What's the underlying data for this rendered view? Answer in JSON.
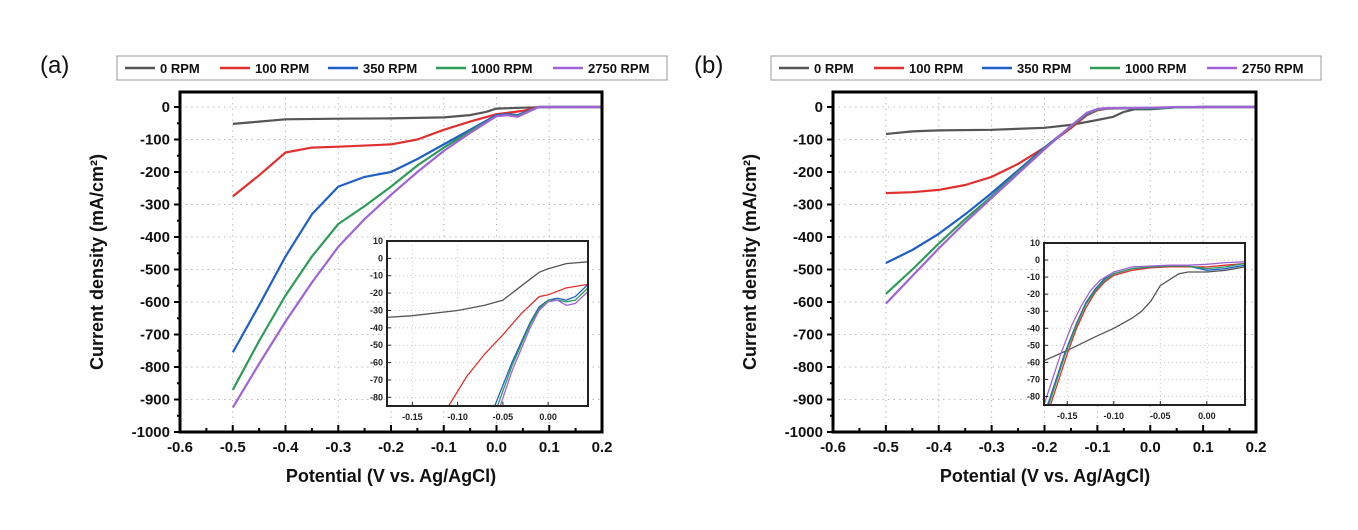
{
  "chart_data": [
    {
      "type": "line",
      "panel_label": "(a)",
      "title": "",
      "xlabel": "Potential (V vs. Ag/AgCl)",
      "ylabel": "Current density (mA/cm²)",
      "xlim": [
        -0.6,
        0.2
      ],
      "ylim": [
        -1000,
        50
      ],
      "xticks": [
        "-0.6",
        "-0.5",
        "-0.4",
        "-0.3",
        "-0.2",
        "-0.1",
        "0.0",
        "0.1",
        "0.2"
      ],
      "yticks": [
        "0",
        "-100",
        "-200",
        "-300",
        "-400",
        "-500",
        "-600",
        "-700",
        "-800",
        "-900",
        "-1000"
      ],
      "grid": true,
      "legend_position": "top",
      "series": [
        {
          "name": "0 RPM",
          "color": "#555555",
          "x": [
            -0.5,
            -0.45,
            -0.4,
            -0.3,
            -0.2,
            -0.1,
            -0.05,
            -0.02,
            0.0,
            0.05,
            0.1,
            0.2
          ],
          "y": [
            -52,
            -45,
            -38,
            -36,
            -35,
            -32,
            -25,
            -15,
            -5,
            -2,
            0,
            0
          ]
        },
        {
          "name": "100 RPM",
          "color": "#e03030",
          "x": [
            -0.5,
            -0.45,
            -0.4,
            -0.35,
            -0.3,
            -0.2,
            -0.15,
            -0.1,
            -0.05,
            0.0,
            0.05,
            0.08,
            0.1,
            0.2
          ],
          "y": [
            -275,
            -210,
            -140,
            -125,
            -122,
            -115,
            -100,
            -70,
            -45,
            -22,
            -12,
            0,
            0,
            0
          ]
        },
        {
          "name": "350 RPM",
          "color": "#1f5fc8",
          "x": [
            -0.5,
            -0.45,
            -0.4,
            -0.35,
            -0.3,
            -0.25,
            -0.2,
            -0.15,
            -0.1,
            -0.05,
            0.0,
            0.02,
            0.04,
            0.08,
            0.1,
            0.2
          ],
          "y": [
            -755,
            -610,
            -460,
            -330,
            -245,
            -215,
            -200,
            -160,
            -115,
            -70,
            -25,
            -22,
            -25,
            0,
            0,
            0
          ]
        },
        {
          "name": "1000 RPM",
          "color": "#2e9c58",
          "x": [
            -0.5,
            -0.45,
            -0.4,
            -0.35,
            -0.3,
            -0.25,
            -0.2,
            -0.15,
            -0.1,
            -0.05,
            0.0,
            0.02,
            0.04,
            0.08,
            0.1,
            0.2
          ],
          "y": [
            -870,
            -720,
            -580,
            -460,
            -360,
            -305,
            -245,
            -180,
            -125,
            -75,
            -28,
            -24,
            -28,
            0,
            0,
            0
          ]
        },
        {
          "name": "2750 RPM",
          "color": "#a063d6",
          "x": [
            -0.5,
            -0.45,
            -0.4,
            -0.35,
            -0.3,
            -0.25,
            -0.2,
            -0.15,
            -0.1,
            -0.05,
            0.0,
            0.02,
            0.04,
            0.08,
            0.1,
            0.2
          ],
          "y": [
            -925,
            -790,
            -660,
            -540,
            -430,
            -345,
            -270,
            -200,
            -135,
            -80,
            -28,
            -25,
            -30,
            0,
            0,
            0
          ]
        }
      ],
      "inset": {
        "xlim": [
          -0.178,
          0.044
        ],
        "ylim": [
          -85,
          10
        ],
        "xticks": [
          "-0.15",
          "-0.10",
          "-0.05",
          "0.00"
        ],
        "yticks": [
          "10",
          "0",
          "-10",
          "-20",
          "-30",
          "-40",
          "-50",
          "-60",
          "-70",
          "-80"
        ],
        "series": [
          {
            "name": "0 RPM",
            "color": "#555555",
            "x": [
              -0.178,
              -0.15,
              -0.1,
              -0.07,
              -0.05,
              -0.03,
              -0.01,
              0.0,
              0.02,
              0.044
            ],
            "y": [
              -34,
              -33,
              -30,
              -27,
              -24,
              -16,
              -8,
              -6,
              -3,
              -2
            ]
          },
          {
            "name": "100 RPM",
            "color": "#e03030",
            "x": [
              -0.11,
              -0.09,
              -0.07,
              -0.05,
              -0.03,
              -0.01,
              0.0,
              0.02,
              0.044
            ],
            "y": [
              -85,
              -68,
              -55,
              -44,
              -32,
              -22,
              -21,
              -17,
              -15
            ]
          },
          {
            "name": "350 RPM",
            "color": "#1f5fc8",
            "x": [
              -0.059,
              -0.04,
              -0.02,
              -0.01,
              0.0,
              0.01,
              0.02,
              0.03,
              0.044
            ],
            "y": [
              -85,
              -60,
              -37,
              -28,
              -24,
              -23,
              -24,
              -22,
              -15
            ]
          },
          {
            "name": "1000 RPM",
            "color": "#2e9c58",
            "x": [
              -0.056,
              -0.04,
              -0.02,
              -0.01,
              0.0,
              0.01,
              0.02,
              0.03,
              0.044
            ],
            "y": [
              -85,
              -62,
              -38,
              -29,
              -24,
              -24,
              -25,
              -24,
              -17
            ]
          },
          {
            "name": "2750 RPM",
            "color": "#a063d6",
            "x": [
              -0.053,
              -0.04,
              -0.02,
              -0.01,
              0.0,
              0.01,
              0.02,
              0.03,
              0.044
            ],
            "y": [
              -85,
              -65,
              -40,
              -30,
              -25,
              -24,
              -27,
              -26,
              -19
            ]
          }
        ]
      }
    },
    {
      "type": "line",
      "panel_label": "(b)",
      "title": "",
      "xlabel": "Potential (V vs. Ag/AgCl)",
      "ylabel": "Current density (mA/cm²)",
      "xlim": [
        -0.6,
        0.2
      ],
      "ylim": [
        -1000,
        50
      ],
      "xticks": [
        "-0.6",
        "-0.5",
        "-0.4",
        "-0.3",
        "-0.2",
        "-0.1",
        "0.0",
        "0.1",
        "0.2"
      ],
      "yticks": [
        "0",
        "-100",
        "-200",
        "-300",
        "-400",
        "-500",
        "-600",
        "-700",
        "-800",
        "-900",
        "-1000"
      ],
      "grid": true,
      "legend_position": "top",
      "series": [
        {
          "name": "0 RPM",
          "color": "#555555",
          "x": [
            -0.5,
            -0.45,
            -0.4,
            -0.3,
            -0.2,
            -0.15,
            -0.1,
            -0.07,
            -0.05,
            -0.03,
            0.0,
            0.05,
            0.1,
            0.2
          ],
          "y": [
            -83,
            -75,
            -72,
            -70,
            -64,
            -55,
            -40,
            -30,
            -15,
            -7,
            -7,
            -1,
            0,
            0
          ]
        },
        {
          "name": "100 RPM",
          "color": "#e03030",
          "x": [
            -0.5,
            -0.45,
            -0.4,
            -0.35,
            -0.3,
            -0.25,
            -0.2,
            -0.15,
            -0.12,
            -0.1,
            -0.08,
            -0.05,
            0.0,
            0.05,
            0.1,
            0.2
          ],
          "y": [
            -265,
            -262,
            -255,
            -240,
            -215,
            -175,
            -125,
            -65,
            -25,
            -10,
            -5,
            -4,
            -4,
            -1,
            0,
            0
          ]
        },
        {
          "name": "350 RPM",
          "color": "#1f5fc8",
          "x": [
            -0.5,
            -0.45,
            -0.4,
            -0.35,
            -0.3,
            -0.25,
            -0.2,
            -0.15,
            -0.12,
            -0.1,
            -0.08,
            -0.05,
            0.0,
            0.05,
            0.1,
            0.2
          ],
          "y": [
            -480,
            -440,
            -390,
            -330,
            -265,
            -195,
            -125,
            -60,
            -22,
            -8,
            -4,
            -3,
            -5,
            -1,
            0,
            0
          ]
        },
        {
          "name": "1000 RPM",
          "color": "#2e9c58",
          "x": [
            -0.5,
            -0.45,
            -0.4,
            -0.35,
            -0.3,
            -0.25,
            -0.2,
            -0.15,
            -0.12,
            -0.1,
            -0.08,
            -0.05,
            0.0,
            0.05,
            0.1,
            0.2
          ],
          "y": [
            -575,
            -500,
            -420,
            -345,
            -275,
            -200,
            -128,
            -60,
            -20,
            -8,
            -4,
            -3,
            -4,
            -1,
            0,
            0
          ]
        },
        {
          "name": "2750 RPM",
          "color": "#a063d6",
          "x": [
            -0.5,
            -0.45,
            -0.4,
            -0.35,
            -0.3,
            -0.25,
            -0.2,
            -0.15,
            -0.12,
            -0.1,
            -0.08,
            -0.05,
            0.0,
            0.05,
            0.1,
            0.2
          ],
          "y": [
            -605,
            -520,
            -435,
            -355,
            -280,
            -205,
            -130,
            -58,
            -18,
            -6,
            -3,
            -3,
            -2,
            0,
            0,
            0
          ]
        }
      ],
      "inset": {
        "xlim": [
          -0.175,
          0.041
        ],
        "ylim": [
          -85,
          10
        ],
        "xticks": [
          "-0.15",
          "-0.10",
          "-0.05",
          "0.00"
        ],
        "yticks": [
          "10",
          "0",
          "-10",
          "-20",
          "-30",
          "-40",
          "-50",
          "-60",
          "-70",
          "-80"
        ],
        "series": [
          {
            "name": "0 RPM",
            "color": "#555555",
            "x": [
              -0.175,
              -0.15,
              -0.12,
              -0.1,
              -0.08,
              -0.07,
              -0.06,
              -0.05,
              -0.03,
              -0.02,
              0.0,
              0.02,
              0.041
            ],
            "y": [
              -59,
              -53,
              -45,
              -40,
              -34,
              -30,
              -24,
              -15,
              -8,
              -7,
              -7,
              -6,
              -4
            ]
          },
          {
            "name": "100 RPM",
            "color": "#e03030",
            "x": [
              -0.168,
              -0.15,
              -0.14,
              -0.13,
              -0.12,
              -0.11,
              -0.1,
              -0.08,
              -0.06,
              -0.04,
              -0.02,
              0.0,
              0.02,
              0.041
            ],
            "y": [
              -85,
              -55,
              -40,
              -28,
              -19,
              -13,
              -9,
              -6,
              -4.5,
              -4,
              -4,
              -4,
              -3,
              -2
            ]
          },
          {
            "name": "350 RPM",
            "color": "#1f5fc8",
            "x": [
              -0.171,
              -0.153,
              -0.14,
              -0.13,
              -0.12,
              -0.11,
              -0.1,
              -0.08,
              -0.06,
              -0.04,
              -0.02,
              0.0,
              0.02,
              0.041
            ],
            "y": [
              -85,
              -55,
              -37,
              -25,
              -17,
              -11,
              -8,
              -5,
              -4,
              -3.5,
              -3.5,
              -6,
              -5,
              -3
            ]
          },
          {
            "name": "1000 RPM",
            "color": "#2e9c58",
            "x": [
              -0.17,
              -0.152,
              -0.14,
              -0.13,
              -0.12,
              -0.11,
              -0.1,
              -0.08,
              -0.06,
              -0.04,
              -0.02,
              0.0,
              0.02,
              0.041
            ],
            "y": [
              -85,
              -55,
              -38,
              -26,
              -18,
              -12,
              -8,
              -5,
              -4,
              -3.5,
              -3.5,
              -5,
              -4,
              -2
            ]
          },
          {
            "name": "2750 RPM",
            "color": "#a063d6",
            "x": [
              -0.175,
              -0.157,
              -0.145,
              -0.135,
              -0.125,
              -0.115,
              -0.1,
              -0.08,
              -0.06,
              -0.04,
              -0.02,
              0.0,
              0.02,
              0.041
            ],
            "y": [
              -85,
              -55,
              -38,
              -27,
              -18,
              -12,
              -7,
              -4,
              -3.5,
              -3,
              -3,
              -2.5,
              -1.5,
              -1
            ]
          }
        ]
      }
    }
  ]
}
